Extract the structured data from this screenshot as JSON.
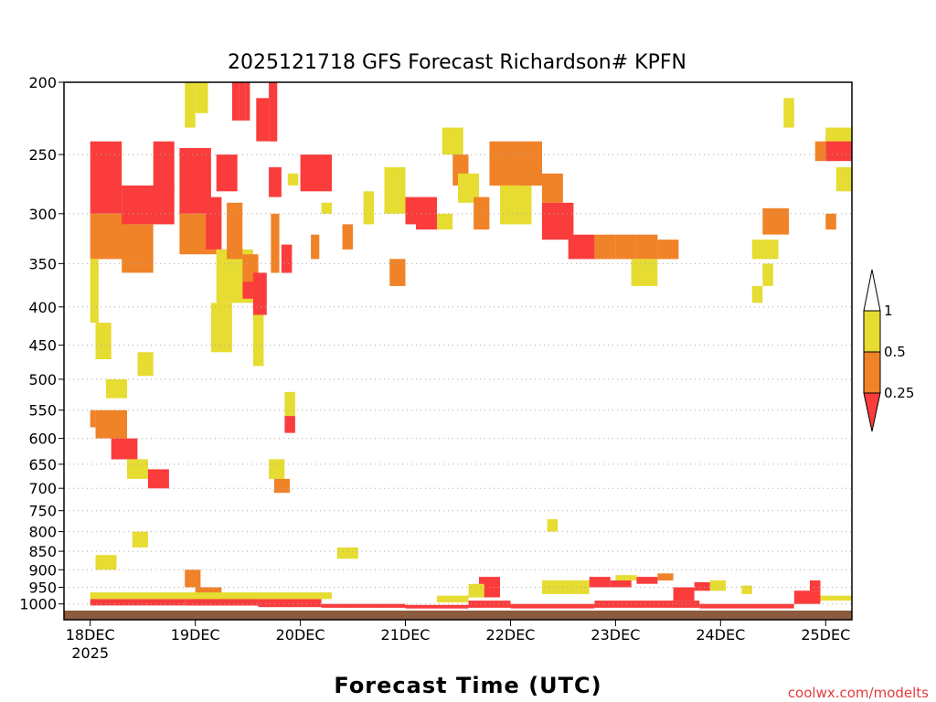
{
  "chart_data": {
    "type": "heatmap",
    "title": "2025121718 GFS Forecast Richardson# KPFN",
    "xlabel": "Forecast Time (UTC)",
    "ylabel": "",
    "credit": "coolwx.com/modelts",
    "y_axis": {
      "scale": "log-pressure",
      "range_hpa": [
        200,
        1050
      ],
      "ticks": [
        "200",
        "250",
        "300",
        "350",
        "400",
        "450",
        "500",
        "550",
        "600",
        "650",
        "700",
        "750",
        "800",
        "850",
        "900",
        "950",
        "1000"
      ],
      "grid": "dotted"
    },
    "x_axis": {
      "range": [
        "2025-12-17T18Z",
        "2025-12-25T06Z"
      ],
      "ticks": [
        {
          "day": 18,
          "label": "18DEC",
          "sub": "2025"
        },
        {
          "day": 19,
          "label": "19DEC",
          "sub": ""
        },
        {
          "day": 20,
          "label": "20DEC",
          "sub": ""
        },
        {
          "day": 21,
          "label": "21DEC",
          "sub": ""
        },
        {
          "day": 22,
          "label": "22DEC",
          "sub": ""
        },
        {
          "day": 23,
          "label": "23DEC",
          "sub": ""
        },
        {
          "day": 24,
          "label": "24DEC",
          "sub": ""
        },
        {
          "day": 25,
          "label": "25DEC",
          "sub": ""
        }
      ]
    },
    "legend": {
      "placement": "right",
      "levels": [
        "1",
        "0.5",
        "0.25"
      ],
      "colors": {
        "top": "#ffffff",
        "mid_high": "#e6dc32",
        "mid_low": "#f08228",
        "bottom": "#fa3c3c"
      }
    },
    "colors": {
      "red": "#fa3c3c",
      "orange": "#f08228",
      "yellow": "#e6dc32",
      "ground": "#8c5a3c"
    },
    "cells": [
      {
        "t0": 18.0,
        "t1": 18.3,
        "p0": 240,
        "p1": 300,
        "c": "r"
      },
      {
        "t0": 18.0,
        "t1": 18.35,
        "p0": 300,
        "p1": 345,
        "c": "o"
      },
      {
        "t0": 18.0,
        "t1": 18.08,
        "p0": 345,
        "p1": 420,
        "c": "y"
      },
      {
        "t0": 18.05,
        "t1": 18.2,
        "p0": 420,
        "p1": 470,
        "c": "y"
      },
      {
        "t0": 18.3,
        "t1": 18.8,
        "p0": 275,
        "p1": 310,
        "c": "r"
      },
      {
        "t0": 18.3,
        "t1": 18.6,
        "p0": 310,
        "p1": 360,
        "c": "o"
      },
      {
        "t0": 18.6,
        "t1": 18.8,
        "p0": 240,
        "p1": 280,
        "c": "r"
      },
      {
        "t0": 18.85,
        "t1": 19.15,
        "p0": 245,
        "p1": 300,
        "c": "r"
      },
      {
        "t0": 18.85,
        "t1": 19.2,
        "p0": 300,
        "p1": 340,
        "c": "o"
      },
      {
        "t0": 18.9,
        "t1": 19.0,
        "p0": 200,
        "p1": 230,
        "c": "y"
      },
      {
        "t0": 19.0,
        "t1": 19.12,
        "p0": 200,
        "p1": 220,
        "c": "y"
      },
      {
        "t0": 19.1,
        "t1": 19.25,
        "p0": 285,
        "p1": 335,
        "c": "r"
      },
      {
        "t0": 19.2,
        "t1": 19.4,
        "p0": 250,
        "p1": 280,
        "c": "r"
      },
      {
        "t0": 19.2,
        "t1": 19.55,
        "p0": 335,
        "p1": 395,
        "c": "y"
      },
      {
        "t0": 19.15,
        "t1": 19.35,
        "p0": 395,
        "p1": 460,
        "c": "y"
      },
      {
        "t0": 19.35,
        "t1": 19.42,
        "p0": 200,
        "p1": 225,
        "c": "r"
      },
      {
        "t0": 19.42,
        "t1": 19.48,
        "p0": 200,
        "p1": 225,
        "c": "r"
      },
      {
        "t0": 19.48,
        "t1": 19.52,
        "p0": 200,
        "p1": 225,
        "c": "r"
      },
      {
        "t0": 19.58,
        "t1": 19.7,
        "p0": 210,
        "p1": 240,
        "c": "r"
      },
      {
        "t0": 19.7,
        "t1": 19.78,
        "p0": 200,
        "p1": 240,
        "c": "r"
      },
      {
        "t0": 19.45,
        "t1": 19.55,
        "p0": 355,
        "p1": 390,
        "c": "r"
      },
      {
        "t0": 19.3,
        "t1": 19.45,
        "p0": 290,
        "p1": 345,
        "c": "o"
      },
      {
        "t0": 19.45,
        "t1": 19.6,
        "p0": 340,
        "p1": 370,
        "c": "o"
      },
      {
        "t0": 19.55,
        "t1": 19.68,
        "p0": 360,
        "p1": 410,
        "c": "r"
      },
      {
        "t0": 19.55,
        "t1": 19.65,
        "p0": 410,
        "p1": 480,
        "c": "y"
      },
      {
        "t0": 19.7,
        "t1": 19.82,
        "p0": 260,
        "p1": 285,
        "c": "r"
      },
      {
        "t0": 19.72,
        "t1": 19.8,
        "p0": 300,
        "p1": 360,
        "c": "o"
      },
      {
        "t0": 19.82,
        "t1": 19.92,
        "p0": 330,
        "p1": 360,
        "c": "r"
      },
      {
        "t0": 19.88,
        "t1": 19.98,
        "p0": 265,
        "p1": 275,
        "c": "y"
      },
      {
        "t0": 20.0,
        "t1": 20.3,
        "p0": 250,
        "p1": 280,
        "c": "r"
      },
      {
        "t0": 20.1,
        "t1": 20.18,
        "p0": 320,
        "p1": 345,
        "c": "o"
      },
      {
        "t0": 20.4,
        "t1": 20.5,
        "p0": 310,
        "p1": 335,
        "c": "o"
      },
      {
        "t0": 20.2,
        "t1": 20.3,
        "p0": 290,
        "p1": 300,
        "c": "y"
      },
      {
        "t0": 20.6,
        "t1": 20.7,
        "p0": 280,
        "p1": 310,
        "c": "y"
      },
      {
        "t0": 20.8,
        "t1": 21.0,
        "p0": 260,
        "p1": 300,
        "c": "y"
      },
      {
        "t0": 20.85,
        "t1": 21.0,
        "p0": 345,
        "p1": 375,
        "c": "o"
      },
      {
        "t0": 21.0,
        "t1": 21.3,
        "p0": 285,
        "p1": 310,
        "c": "r"
      },
      {
        "t0": 21.1,
        "t1": 21.3,
        "p0": 300,
        "p1": 315,
        "c": "r"
      },
      {
        "t0": 21.3,
        "t1": 21.45,
        "p0": 300,
        "p1": 315,
        "c": "y"
      },
      {
        "t0": 21.35,
        "t1": 21.55,
        "p0": 230,
        "p1": 250,
        "c": "y"
      },
      {
        "t0": 21.45,
        "t1": 21.6,
        "p0": 250,
        "p1": 275,
        "c": "o"
      },
      {
        "t0": 21.5,
        "t1": 21.7,
        "p0": 265,
        "p1": 290,
        "c": "y"
      },
      {
        "t0": 21.65,
        "t1": 21.8,
        "p0": 285,
        "p1": 315,
        "c": "o"
      },
      {
        "t0": 21.8,
        "t1": 22.1,
        "p0": 240,
        "p1": 275,
        "c": "o"
      },
      {
        "t0": 21.9,
        "t1": 22.2,
        "p0": 275,
        "p1": 310,
        "c": "y"
      },
      {
        "t0": 22.1,
        "t1": 22.3,
        "p0": 240,
        "p1": 275,
        "c": "o"
      },
      {
        "t0": 22.3,
        "t1": 22.5,
        "p0": 265,
        "p1": 290,
        "c": "o"
      },
      {
        "t0": 22.3,
        "t1": 22.6,
        "p0": 290,
        "p1": 325,
        "c": "r"
      },
      {
        "t0": 22.55,
        "t1": 22.8,
        "p0": 320,
        "p1": 345,
        "c": "r"
      },
      {
        "t0": 22.8,
        "t1": 23.0,
        "p0": 320,
        "p1": 345,
        "c": "o"
      },
      {
        "t0": 23.0,
        "t1": 23.2,
        "p0": 320,
        "p1": 345,
        "c": "o"
      },
      {
        "t0": 23.2,
        "t1": 23.4,
        "p0": 320,
        "p1": 345,
        "c": "o"
      },
      {
        "t0": 23.4,
        "t1": 23.6,
        "p0": 325,
        "p1": 345,
        "c": "o"
      },
      {
        "t0": 23.15,
        "t1": 23.4,
        "p0": 345,
        "p1": 375,
        "c": "y"
      },
      {
        "t0": 24.4,
        "t1": 24.65,
        "p0": 295,
        "p1": 320,
        "c": "o"
      },
      {
        "t0": 24.3,
        "t1": 24.55,
        "p0": 325,
        "p1": 345,
        "c": "y"
      },
      {
        "t0": 24.4,
        "t1": 24.5,
        "p0": 350,
        "p1": 375,
        "c": "y"
      },
      {
        "t0": 24.3,
        "t1": 24.4,
        "p0": 375,
        "p1": 395,
        "c": "y"
      },
      {
        "t0": 24.6,
        "t1": 24.7,
        "p0": 210,
        "p1": 230,
        "c": "y"
      },
      {
        "t0": 25.0,
        "t1": 25.25,
        "p0": 235,
        "p1": 255,
        "c": "r"
      },
      {
        "t0": 24.9,
        "t1": 25.0,
        "p0": 240,
        "p1": 255,
        "c": "o"
      },
      {
        "t0": 25.0,
        "t1": 25.25,
        "p0": 230,
        "p1": 240,
        "c": "y"
      },
      {
        "t0": 25.0,
        "t1": 25.1,
        "p0": 300,
        "p1": 315,
        "c": "o"
      },
      {
        "t0": 25.1,
        "t1": 25.25,
        "p0": 260,
        "p1": 280,
        "c": "y"
      },
      {
        "t0": 18.0,
        "t1": 18.05,
        "p0": 550,
        "p1": 580,
        "c": "o"
      },
      {
        "t0": 18.05,
        "t1": 18.35,
        "p0": 550,
        "p1": 600,
        "c": "o"
      },
      {
        "t0": 18.2,
        "t1": 18.45,
        "p0": 600,
        "p1": 640,
        "c": "r"
      },
      {
        "t0": 18.35,
        "t1": 18.55,
        "p0": 640,
        "p1": 680,
        "c": "y"
      },
      {
        "t0": 18.55,
        "t1": 18.75,
        "p0": 660,
        "p1": 700,
        "c": "r"
      },
      {
        "t0": 18.15,
        "t1": 18.35,
        "p0": 500,
        "p1": 530,
        "c": "y"
      },
      {
        "t0": 18.45,
        "t1": 18.6,
        "p0": 460,
        "p1": 495,
        "c": "y"
      },
      {
        "t0": 19.85,
        "t1": 19.95,
        "p0": 520,
        "p1": 560,
        "c": "y"
      },
      {
        "t0": 19.85,
        "t1": 19.95,
        "p0": 560,
        "p1": 590,
        "c": "r"
      },
      {
        "t0": 19.7,
        "t1": 19.85,
        "p0": 640,
        "p1": 680,
        "c": "y"
      },
      {
        "t0": 19.75,
        "t1": 19.9,
        "p0": 680,
        "p1": 710,
        "c": "o"
      },
      {
        "t0": 20.35,
        "t1": 20.55,
        "p0": 840,
        "p1": 870,
        "c": "y"
      },
      {
        "t0": 22.35,
        "t1": 22.45,
        "p0": 770,
        "p1": 800,
        "c": "y"
      },
      {
        "t0": 18.05,
        "t1": 18.25,
        "p0": 860,
        "p1": 900,
        "c": "y"
      },
      {
        "t0": 18.4,
        "t1": 18.55,
        "p0": 800,
        "p1": 840,
        "c": "y"
      },
      {
        "t0": 18.9,
        "t1": 19.05,
        "p0": 900,
        "p1": 950,
        "c": "o"
      },
      {
        "t0": 19.0,
        "t1": 19.25,
        "p0": 950,
        "p1": 980,
        "c": "o"
      },
      {
        "t0": 21.7,
        "t1": 21.9,
        "p0": 920,
        "p1": 980,
        "c": "r"
      },
      {
        "t0": 21.6,
        "t1": 21.75,
        "p0": 940,
        "p1": 980,
        "c": "y"
      },
      {
        "t0": 22.3,
        "t1": 22.75,
        "p0": 930,
        "p1": 970,
        "c": "y"
      },
      {
        "t0": 22.75,
        "t1": 22.95,
        "p0": 920,
        "p1": 950,
        "c": "r"
      },
      {
        "t0": 22.95,
        "t1": 23.15,
        "p0": 930,
        "p1": 950,
        "c": "r"
      },
      {
        "t0": 23.2,
        "t1": 23.4,
        "p0": 920,
        "p1": 940,
        "c": "r"
      },
      {
        "t0": 23.4,
        "t1": 23.55,
        "p0": 910,
        "p1": 930,
        "c": "o"
      },
      {
        "t0": 23.0,
        "t1": 23.2,
        "p0": 915,
        "p1": 930,
        "c": "y"
      },
      {
        "t0": 23.55,
        "t1": 23.75,
        "p0": 950,
        "p1": 990,
        "c": "r"
      },
      {
        "t0": 23.75,
        "t1": 23.9,
        "p0": 935,
        "p1": 960,
        "c": "r"
      },
      {
        "t0": 23.9,
        "t1": 24.05,
        "p0": 930,
        "p1": 960,
        "c": "y"
      },
      {
        "t0": 24.2,
        "t1": 24.3,
        "p0": 945,
        "p1": 970,
        "c": "y"
      },
      {
        "t0": 24.7,
        "t1": 24.95,
        "p0": 960,
        "p1": 1000,
        "c": "r"
      },
      {
        "t0": 24.85,
        "t1": 24.95,
        "p0": 930,
        "p1": 960,
        "c": "r"
      },
      {
        "t0": 24.95,
        "t1": 25.25,
        "p0": 975,
        "p1": 990,
        "c": "y"
      },
      {
        "t0": 18.0,
        "t1": 18.9,
        "p0": 985,
        "p1": 1005,
        "c": "r"
      },
      {
        "t0": 18.9,
        "t1": 19.6,
        "p0": 970,
        "p1": 1005,
        "c": "r"
      },
      {
        "t0": 19.6,
        "t1": 20.2,
        "p0": 985,
        "p1": 1010,
        "c": "r"
      },
      {
        "t0": 20.2,
        "t1": 21.0,
        "p0": 1000,
        "p1": 1012,
        "c": "r"
      },
      {
        "t0": 21.0,
        "t1": 21.6,
        "p0": 1003,
        "p1": 1014,
        "c": "r"
      },
      {
        "t0": 21.6,
        "t1": 22.0,
        "p0": 990,
        "p1": 1012,
        "c": "r"
      },
      {
        "t0": 22.0,
        "t1": 22.8,
        "p0": 1000,
        "p1": 1014,
        "c": "r"
      },
      {
        "t0": 22.8,
        "t1": 23.8,
        "p0": 990,
        "p1": 1012,
        "c": "r"
      },
      {
        "t0": 23.8,
        "t1": 24.7,
        "p0": 1000,
        "p1": 1014,
        "c": "r"
      },
      {
        "t0": 18.0,
        "t1": 20.3,
        "p0": 965,
        "p1": 985,
        "c": "y"
      },
      {
        "t0": 21.3,
        "t1": 21.6,
        "p0": 975,
        "p1": 995,
        "c": "y"
      }
    ]
  }
}
